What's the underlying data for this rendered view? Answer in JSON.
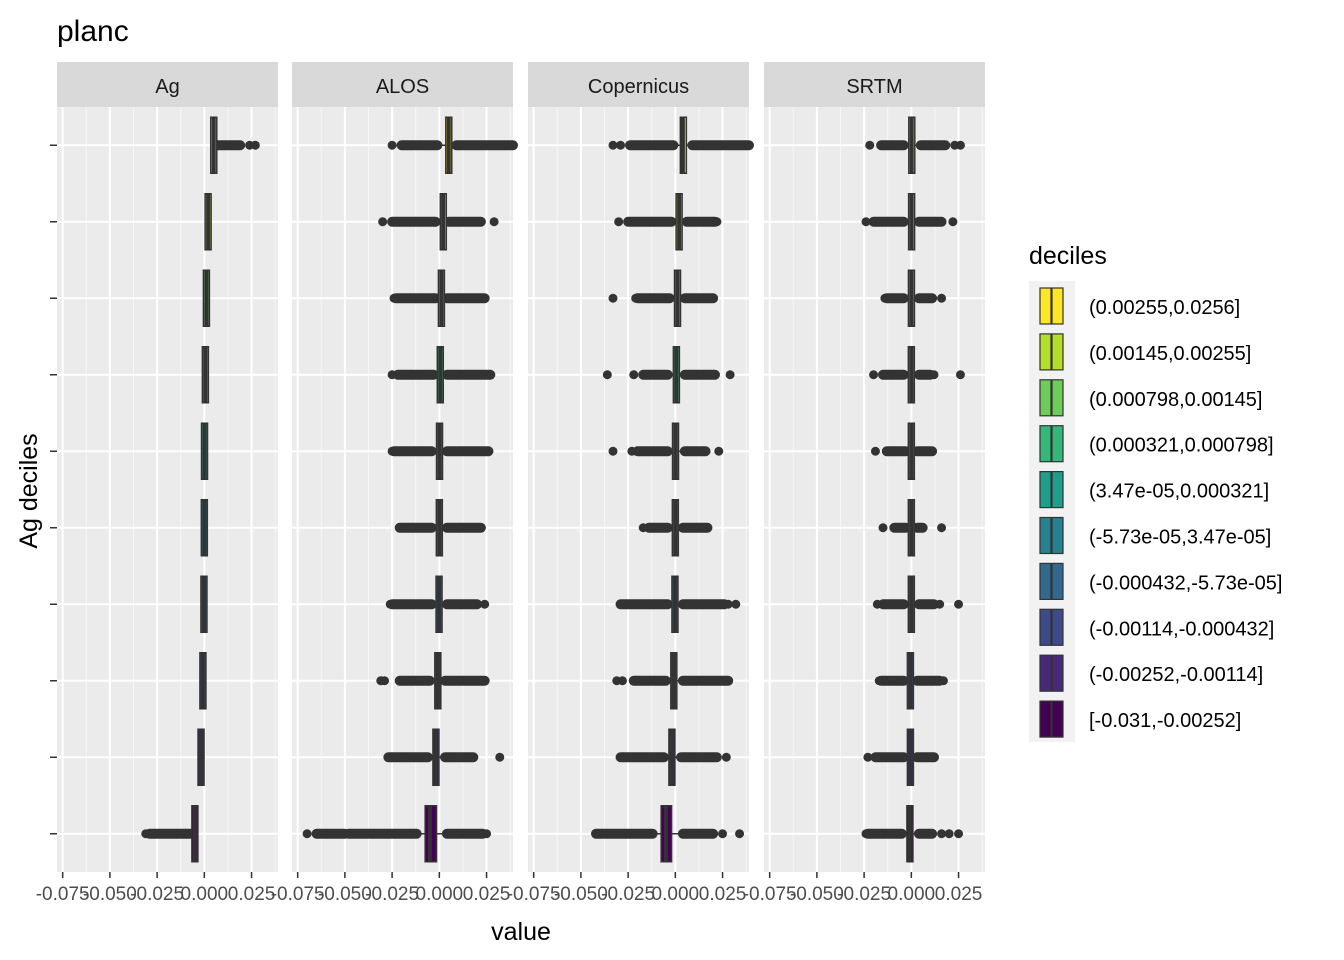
{
  "chart_data": {
    "type": "boxplot",
    "title": "planc",
    "xlabel": "value",
    "ylabel": "Ag deciles",
    "xlim": [
      -0.078,
      0.039
    ],
    "x_ticks": [
      -0.075,
      -0.05,
      -0.025,
      0.0,
      0.025
    ],
    "x_tick_labels": [
      "-0.075",
      "-0.050",
      "-0.025",
      "0.000",
      "0.025"
    ],
    "legend_title": "deciles",
    "legend_position": "right",
    "grid": true,
    "categories": [
      "(0.00255,0.0256]",
      "(0.00145,0.00255]",
      "(0.000798,0.00145]",
      "(0.000321,0.000798]",
      "(3.47e-05,0.000321]",
      "(-5.73e-05,3.47e-05]",
      "(-0.000432,-5.73e-05]",
      "(-0.00114,-0.000432]",
      "(-0.00252,-0.00114]",
      "[-0.031,-0.00252]"
    ],
    "colors": [
      "#FDE725",
      "#B4DE2C",
      "#6DCD59",
      "#35B779",
      "#1F9E89",
      "#26828E",
      "#31688E",
      "#3E4A89",
      "#482878",
      "#440154"
    ],
    "panels": [
      {
        "name": "Ag",
        "boxes": [
          {
            "median": 0.005,
            "q1": 0.0035,
            "q3": 0.0065,
            "wlo": 0.0035,
            "whi": 0.0065,
            "outliers": [
              [
                0.0065,
                0.019
              ],
              0.024,
              0.027
            ]
          },
          {
            "median": 0.002,
            "q1": 0.0016,
            "q3": 0.0024,
            "wlo": 0.0016,
            "whi": 0.0024,
            "outliers": []
          },
          {
            "median": 0.0011,
            "q1": 0.0009,
            "q3": 0.0013,
            "wlo": 0.0009,
            "whi": 0.0013,
            "outliers": []
          },
          {
            "median": 0.0005,
            "q1": 0.0004,
            "q3": 0.0007,
            "wlo": 0.0004,
            "whi": 0.0007,
            "outliers": []
          },
          {
            "median": 0.0001,
            "q1": 0.0,
            "q3": 0.0002,
            "wlo": 0.0,
            "whi": 0.0002,
            "outliers": []
          },
          {
            "median": -0.0,
            "q1": -0.0001,
            "q3": 0.0001,
            "wlo": -0.0001,
            "whi": 0.0001,
            "outliers": []
          },
          {
            "median": -0.0002,
            "q1": -0.0004,
            "q3": 0.0,
            "wlo": -0.0004,
            "whi": 0.0,
            "outliers": []
          },
          {
            "median": -0.0008,
            "q1": -0.001,
            "q3": -0.0005,
            "wlo": -0.001,
            "whi": -0.0005,
            "outliers": []
          },
          {
            "median": -0.0018,
            "q1": -0.0023,
            "q3": -0.0012,
            "wlo": -0.0023,
            "whi": -0.0012,
            "outliers": []
          },
          {
            "median": -0.005,
            "q1": -0.0065,
            "q3": -0.0035,
            "wlo": -0.0065,
            "whi": -0.0035,
            "outliers": [
              [
                -0.029,
                -0.0065
              ],
              -0.031
            ]
          }
        ]
      },
      {
        "name": "ALOS",
        "boxes": [
          {
            "median": 0.005,
            "q1": 0.0035,
            "q3": 0.0065,
            "wlo": 0.0,
            "whi": 0.0085,
            "outliers": [
              [
                -0.02,
                -0.001
              ],
              -0.025,
              [
                0.009,
                0.039
              ]
            ]
          },
          {
            "median": 0.002,
            "q1": 0.0012,
            "q3": 0.003,
            "wlo": -0.002,
            "whi": 0.005,
            "outliers": [
              [
                -0.025,
                -0.002
              ],
              -0.03,
              [
                0.005,
                0.022
              ],
              0.029
            ]
          },
          {
            "median": 0.0011,
            "q1": 0.0005,
            "q3": 0.0017,
            "wlo": -0.002,
            "whi": 0.004,
            "outliers": [
              [
                -0.023,
                -0.002
              ],
              -0.024,
              [
                0.004,
                0.024
              ]
            ]
          },
          {
            "median": 0.0005,
            "q1": -0.0001,
            "q3": 0.0011,
            "wlo": -0.003,
            "whi": 0.004,
            "outliers": [
              [
                -0.022,
                -0.003
              ],
              -0.025,
              [
                0.004,
                0.027
              ]
            ]
          },
          {
            "median": 0.0001,
            "q1": -0.0005,
            "q3": 0.0007,
            "wlo": -0.004,
            "whi": 0.004,
            "outliers": [
              [
                -0.024,
                -0.004
              ],
              -0.025,
              [
                0.004,
                0.026
              ]
            ]
          },
          {
            "median": -0.0,
            "q1": -0.0004,
            "q3": 0.0004,
            "wlo": -0.004,
            "whi": 0.004,
            "outliers": [
              [
                -0.021,
                -0.004
              ],
              [
                0.004,
                0.022
              ]
            ]
          },
          {
            "median": -0.0002,
            "q1": -0.0008,
            "q3": 0.0005,
            "wlo": -0.004,
            "whi": 0.004,
            "outliers": [
              [
                -0.025,
                -0.004
              ],
              -0.026,
              [
                0.004,
                0.02
              ],
              0.024
            ]
          },
          {
            "median": -0.0008,
            "q1": -0.0015,
            "q3": -0.0001,
            "wlo": -0.005,
            "whi": 0.003,
            "outliers": [
              [
                -0.021,
                -0.005
              ],
              -0.029,
              -0.031,
              [
                0.003,
                0.024
              ]
            ]
          },
          {
            "median": -0.0018,
            "q1": -0.0025,
            "q3": -0.0011,
            "wlo": -0.006,
            "whi": 0.003,
            "outliers": [
              [
                -0.027,
                -0.006
              ],
              [
                0.003,
                0.018
              ],
              0.032
            ]
          },
          {
            "median": -0.005,
            "q1": -0.0075,
            "q3": -0.0015,
            "wlo": -0.012,
            "whi": 0.004,
            "outliers": [
              [
                -0.048,
                -0.012
              ],
              [
                -0.065,
                -0.05
              ],
              -0.07,
              [
                0.004,
                0.023
              ],
              0.025
            ]
          }
        ]
      },
      {
        "name": "Copernicus",
        "boxes": [
          {
            "median": 0.004,
            "q1": 0.003,
            "q3": 0.0055,
            "wlo": -0.001,
            "whi": 0.009,
            "outliers": [
              [
                -0.024,
                -0.001
              ],
              -0.029,
              -0.033,
              [
                0.009,
                0.039
              ]
            ]
          },
          {
            "median": 0.002,
            "q1": 0.001,
            "q3": 0.003,
            "wlo": -0.002,
            "whi": 0.006,
            "outliers": [
              [
                -0.025,
                -0.002
              ],
              -0.03,
              [
                0.006,
                0.021
              ],
              0.022
            ]
          },
          {
            "median": 0.0011,
            "q1": 0.0003,
            "q3": 0.002,
            "wlo": -0.003,
            "whi": 0.005,
            "outliers": [
              [
                -0.02,
                -0.003
              ],
              -0.021,
              [
                0.005,
                0.02
              ],
              -0.033
            ]
          },
          {
            "median": 0.0005,
            "q1": -0.0003,
            "q3": 0.0014,
            "wlo": -0.004,
            "whi": 0.005,
            "outliers": [
              [
                -0.017,
                -0.004
              ],
              -0.022,
              [
                0.005,
                0.021
              ],
              0.029,
              -0.036
            ]
          },
          {
            "median": 0.0001,
            "q1": -0.0006,
            "q3": 0.0008,
            "wlo": -0.004,
            "whi": 0.005,
            "outliers": [
              [
                -0.02,
                -0.004
              ],
              -0.023,
              [
                0.005,
                0.016
              ],
              0.023,
              -0.033
            ]
          },
          {
            "median": -0.0,
            "q1": -0.0005,
            "q3": 0.0005,
            "wlo": -0.004,
            "whi": 0.004,
            "outliers": [
              [
                -0.014,
                -0.004
              ],
              -0.017,
              [
                0.004,
                0.017
              ]
            ]
          },
          {
            "median": -0.0002,
            "q1": -0.0009,
            "q3": 0.0005,
            "wlo": -0.004,
            "whi": 0.004,
            "outliers": [
              [
                -0.029,
                -0.004
              ],
              [
                0.004,
                0.026
              ],
              0.028,
              0.032
            ]
          },
          {
            "median": -0.0008,
            "q1": -0.0016,
            "q3": 0.0,
            "wlo": -0.005,
            "whi": 0.004,
            "outliers": [
              [
                -0.022,
                -0.005
              ],
              -0.028,
              -0.031,
              [
                0.004,
                0.028
              ]
            ]
          },
          {
            "median": -0.0018,
            "q1": -0.0026,
            "q3": -0.001,
            "wlo": -0.006,
            "whi": 0.003,
            "outliers": [
              [
                -0.029,
                -0.006
              ],
              [
                0.003,
                0.022
              ],
              0.027
            ]
          },
          {
            "median": -0.005,
            "q1": -0.0075,
            "q3": -0.002,
            "wlo": -0.012,
            "whi": 0.004,
            "outliers": [
              [
                -0.042,
                -0.012
              ],
              [
                0.004,
                0.02
              ],
              0.025,
              0.034
            ]
          }
        ]
      },
      {
        "name": "SRTM",
        "boxes": [
          {
            "median": 0.0002,
            "q1": -0.0005,
            "q3": 0.001,
            "wlo": -0.004,
            "whi": 0.005,
            "outliers": [
              [
                -0.016,
                -0.004
              ],
              -0.022,
              [
                0.005,
                0.018
              ],
              0.023,
              0.026
            ]
          },
          {
            "median": 0.0001,
            "q1": -0.0005,
            "q3": 0.0008,
            "wlo": -0.004,
            "whi": 0.004,
            "outliers": [
              [
                -0.02,
                -0.004
              ],
              -0.024,
              [
                0.004,
                0.016
              ],
              0.022
            ]
          },
          {
            "median": 0.0,
            "q1": -0.0005,
            "q3": 0.0006,
            "wlo": -0.004,
            "whi": 0.004,
            "outliers": [
              [
                -0.013,
                -0.004
              ],
              -0.014,
              [
                0.004,
                0.011
              ],
              0.016
            ]
          },
          {
            "median": 0.0,
            "q1": -0.0005,
            "q3": 0.0005,
            "wlo": -0.004,
            "whi": 0.004,
            "outliers": [
              [
                -0.015,
                -0.004
              ],
              -0.02,
              [
                0.004,
                0.01
              ],
              0.012,
              0.026
            ]
          },
          {
            "median": 0.0,
            "q1": -0.0004,
            "q3": 0.0004,
            "wlo": -0.003,
            "whi": 0.003,
            "outliers": [
              [
                -0.013,
                -0.003
              ],
              -0.019,
              [
                0.003,
                0.011
              ]
            ]
          },
          {
            "median": 0.0,
            "q1": -0.0003,
            "q3": 0.0003,
            "wlo": -0.003,
            "whi": 0.003,
            "outliers": [
              [
                -0.009,
                -0.003
              ],
              -0.015,
              [
                0.003,
                0.006
              ],
              0.016
            ]
          },
          {
            "median": 0.0,
            "q1": -0.0005,
            "q3": 0.0005,
            "wlo": -0.004,
            "whi": 0.004,
            "outliers": [
              [
                -0.015,
                -0.004
              ],
              -0.018,
              [
                0.004,
                0.012
              ],
              0.015,
              0.025
            ]
          },
          {
            "median": -0.0005,
            "q1": -0.001,
            "q3": 0.0,
            "wlo": -0.004,
            "whi": 0.003,
            "outliers": [
              [
                -0.016,
                -0.004
              ],
              -0.017,
              [
                0.003,
                0.015
              ],
              0.017
            ]
          },
          {
            "median": -0.0005,
            "q1": -0.001,
            "q3": 0.0,
            "wlo": -0.004,
            "whi": 0.003,
            "outliers": [
              [
                -0.019,
                -0.004
              ],
              -0.023,
              [
                0.003,
                0.012
              ]
            ]
          },
          {
            "median": -0.0008,
            "q1": -0.0015,
            "q3": 0.0,
            "wlo": -0.005,
            "whi": 0.004,
            "outliers": [
              [
                -0.023,
                -0.005
              ],
              -0.024,
              [
                0.004,
                0.011
              ],
              0.016,
              0.02,
              0.025
            ]
          }
        ]
      }
    ]
  }
}
